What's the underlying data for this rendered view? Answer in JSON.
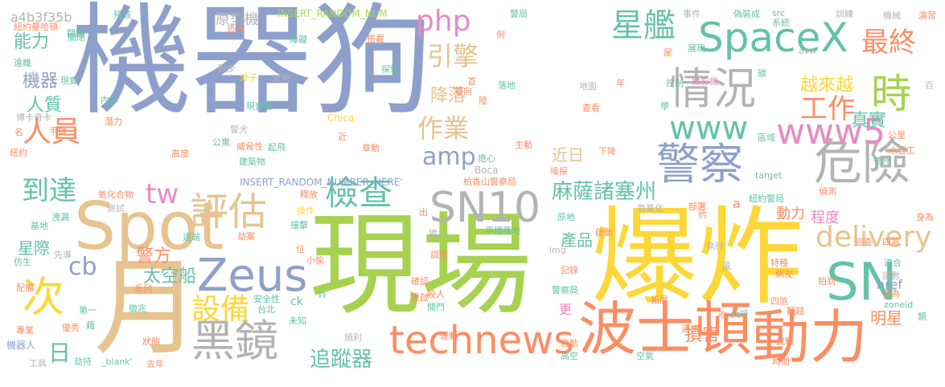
{
  "colors": {
    "blue": "#8d9fcb",
    "green": "#a5d24f",
    "yellow": "#fdd737",
    "orange": "#fc8d62",
    "teal": "#64c2a6",
    "tan": "#e6c38f",
    "gray": "#b3b3b3",
    "pink": "#e78ac3",
    "lime": "#a6d854"
  },
  "words": [
    {
      "text": "機器狗",
      "color": "blue"
    },
    {
      "text": "現場",
      "color": "green"
    },
    {
      "text": "爆炸",
      "color": "yellow"
    },
    {
      "text": "月",
      "color": "tan"
    },
    {
      "text": "Spot",
      "color": "tan"
    },
    {
      "text": "波士頓",
      "color": "orange"
    },
    {
      "text": "動力",
      "color": "orange"
    },
    {
      "text": "SN10",
      "color": "gray"
    },
    {
      "text": "SN",
      "color": "teal"
    },
    {
      "text": "黑鏡",
      "color": "gray"
    },
    {
      "text": "Zeus",
      "color": "blue"
    },
    {
      "text": "警察",
      "color": "blue"
    },
    {
      "text": "危險",
      "color": "gray"
    },
    {
      "text": "情況",
      "color": "gray"
    },
    {
      "text": "時",
      "color": "green"
    },
    {
      "text": "次",
      "color": "yellow"
    },
    {
      "text": "SpaceX",
      "color": "teal"
    },
    {
      "text": "technews",
      "color": "orange"
    },
    {
      "text": "評估",
      "color": "tan"
    },
    {
      "text": "檢查",
      "color": "teal"
    },
    {
      "text": "www5",
      "color": "pink"
    },
    {
      "text": "www",
      "color": "teal"
    },
    {
      "text": "星艦",
      "color": "teal"
    },
    {
      "text": "最終",
      "color": "orange"
    },
    {
      "text": "delivery",
      "color": "tan"
    },
    {
      "text": "設備",
      "color": "yellow"
    },
    {
      "text": "工作",
      "color": "orange"
    },
    {
      "text": "php",
      "color": "pink"
    },
    {
      "text": "amp",
      "color": "blue"
    },
    {
      "text": "人員",
      "color": "orange"
    },
    {
      "text": "到達",
      "color": "teal"
    },
    {
      "text": "作業",
      "color": "tan"
    },
    {
      "text": "引擎",
      "color": "tan"
    },
    {
      "text": "tw",
      "color": "pink"
    },
    {
      "text": "cb",
      "color": "blue"
    },
    {
      "text": "日",
      "color": "teal"
    },
    {
      "text": "麻薩諸塞州",
      "color": "teal"
    },
    {
      "text": "追蹤器",
      "color": "teal"
    },
    {
      "text": "越來越",
      "color": "yellow"
    },
    {
      "text": "真實",
      "color": "teal"
    },
    {
      "text": "能力",
      "color": "teal"
    },
    {
      "text": "人質",
      "color": "teal"
    },
    {
      "text": "警方",
      "color": "orange"
    },
    {
      "text": "太空船",
      "color": "teal"
    },
    {
      "text": "降落",
      "color": "tan"
    },
    {
      "text": "機器",
      "color": "blue"
    },
    {
      "text": "原型機",
      "color": "gray"
    },
    {
      "text": "損害",
      "color": "orange"
    },
    {
      "text": "明星",
      "color": "orange"
    },
    {
      "text": "產品",
      "color": "teal"
    },
    {
      "text": "動力",
      "color": "orange"
    },
    {
      "text": "程度",
      "color": "pink"
    },
    {
      "text": "星際",
      "color": "teal"
    },
    {
      "text": "近日",
      "color": "tan"
    },
    {
      "text": "a4b3f35b",
      "color": "gray"
    },
    {
      "text": "INSERT_RANDOM_NUM",
      "color": "lime"
    },
    {
      "text": "INSERT_RANDOM_NUMBER_HERE'",
      "color": "blue"
    },
    {
      "text": "href",
      "color": "blue"
    },
    {
      "text": "更",
      "color": "pink"
    },
    {
      "text": "四煞",
      "color": "orange"
    },
    {
      "text": "閉閉",
      "color": "teal"
    },
    {
      "text": "紐約警局",
      "color": "teal"
    },
    {
      "text": "柏香山警察局",
      "color": "orange"
    },
    {
      "text": "警察局",
      "color": "teal"
    },
    {
      "text": "機器人",
      "color": "blue"
    },
    {
      "text": "機械",
      "color": "gray"
    },
    {
      "text": "巡查",
      "color": "orange"
    },
    {
      "text": "獨立",
      "color": "gray"
    },
    {
      "text": "平穩落地",
      "color": "teal"
    },
    {
      "text": "確認",
      "color": "orange"
    },
    {
      "text": "重啟",
      "color": "orange"
    },
    {
      "text": "調整",
      "color": "orange"
    },
    {
      "text": "運動",
      "color": "orange"
    },
    {
      "text": "網友",
      "color": "orange"
    },
    {
      "text": "特種",
      "color": "orange"
    },
    {
      "text": "拍到",
      "color": "orange"
    },
    {
      "text": "適合",
      "color": "teal"
    },
    {
      "text": "讀數",
      "color": "gray"
    },
    {
      "text": "名為",
      "color": "orange"
    },
    {
      "text": "翻越",
      "color": "orange"
    },
    {
      "text": "四煞",
      "color": "orange"
    },
    {
      "text": "zoneid",
      "color": "teal"
    },
    {
      "text": "公里",
      "color": "orange"
    },
    {
      "text": "水管工",
      "color": "orange"
    },
    {
      "text": "德州",
      "color": "teal"
    },
    {
      "text": "部署",
      "color": "orange"
    },
    {
      "text": "商業化",
      "color": "gray"
    },
    {
      "text": "啟動",
      "color": "orange"
    },
    {
      "text": "執行",
      "color": "gray"
    },
    {
      "text": "target",
      "color": "teal"
    },
    {
      "text": "偵測",
      "color": "orange"
    },
    {
      "text": "區域",
      "color": "teal"
    },
    {
      "text": "查看",
      "color": "orange"
    },
    {
      "text": "控制",
      "color": "teal"
    },
    {
      "text": "攝影機",
      "color": "pink"
    },
    {
      "text": "地面",
      "color": "gray"
    },
    {
      "text": "avw",
      "color": "gray"
    },
    {
      "text": "碳",
      "color": "teal"
    },
    {
      "text": "展現",
      "color": "teal"
    },
    {
      "text": "系統",
      "color": "teal"
    },
    {
      "text": "事件",
      "color": "gray"
    },
    {
      "text": "偽裝成",
      "color": "teal"
    },
    {
      "text": "src",
      "color": "teal"
    },
    {
      "text": "訓練",
      "color": "gray"
    },
    {
      "text": "演習",
      "color": "orange"
    },
    {
      "text": "警局",
      "color": "teal"
    },
    {
      "text": "殘骸",
      "color": "teal"
    },
    {
      "text": "紐約曼哈頓",
      "color": "orange"
    },
    {
      "text": "關閉",
      "color": "teal"
    },
    {
      "text": "遠離",
      "color": "teal"
    },
    {
      "text": "現實",
      "color": "teal"
    },
    {
      "text": "內部",
      "color": "teal"
    },
    {
      "text": "博卡奇卡",
      "color": "gray"
    },
    {
      "text": "手臂",
      "color": "orange"
    },
    {
      "text": "潛力",
      "color": "orange"
    },
    {
      "text": "紐約",
      "color": "orange"
    },
    {
      "text": "高度",
      "color": "orange"
    },
    {
      "text": "氧化合物",
      "color": "orange"
    },
    {
      "text": "測試",
      "color": "gray"
    },
    {
      "text": "基地",
      "color": "teal"
    },
    {
      "text": "洩漏",
      "color": "teal"
    },
    {
      "text": "仿生",
      "color": "teal"
    },
    {
      "text": "先導",
      "color": "gray"
    },
    {
      "text": "配備",
      "color": "orange"
    },
    {
      "text": "第一",
      "color": "teal"
    },
    {
      "text": "徵兆",
      "color": "teal"
    },
    {
      "text": "專業",
      "color": "orange"
    },
    {
      "text": "藉",
      "color": "teal"
    },
    {
      "text": "優秀",
      "color": "orange"
    },
    {
      "text": "狀態",
      "color": "orange"
    },
    {
      "text": "工具",
      "color": "gray"
    },
    {
      "text": "劫持",
      "color": "teal"
    },
    {
      "text": "_blank'",
      "color": "teal"
    },
    {
      "text": "去年",
      "color": "orange"
    },
    {
      "text": "跑步",
      "color": "gray"
    },
    {
      "text": "分子",
      "color": "yellow"
    },
    {
      "text": "試飛",
      "color": "gray"
    },
    {
      "text": "障礙",
      "color": "teal"
    },
    {
      "text": "搭載",
      "color": "orange"
    },
    {
      "text": "探憶",
      "color": "teal"
    },
    {
      "text": "雙向",
      "color": "orange"
    },
    {
      "text": "起飛",
      "color": "teal"
    },
    {
      "text": "威脅性",
      "color": "orange"
    },
    {
      "text": "建築物",
      "color": "teal"
    },
    {
      "text": "章動",
      "color": "orange"
    },
    {
      "text": "擔心",
      "color": "teal"
    },
    {
      "text": "噪探",
      "color": "orange"
    },
    {
      "text": "下降",
      "color": "orange"
    },
    {
      "text": "主動",
      "color": "orange"
    },
    {
      "text": "落地",
      "color": "teal"
    },
    {
      "text": "撞擊",
      "color": "teal"
    },
    {
      "text": "操作",
      "color": "yellow"
    },
    {
      "text": "遠端",
      "color": "teal"
    },
    {
      "text": "劫案",
      "color": "orange"
    },
    {
      "text": "安全性",
      "color": "teal"
    },
    {
      "text": "台北",
      "color": "teal"
    },
    {
      "text": "小偷",
      "color": "orange"
    },
    {
      "text": "未知",
      "color": "teal"
    },
    {
      "text": "順利",
      "color": "gray"
    },
    {
      "text": "殺人",
      "color": "orange"
    },
    {
      "text": "開門",
      "color": "teal"
    },
    {
      "text": "恐怖",
      "color": "orange"
    },
    {
      "text": "高空",
      "color": "teal"
    },
    {
      "text": "空氣",
      "color": "teal"
    },
    {
      "text": "通訊",
      "color": "orange"
    },
    {
      "text": "拓展",
      "color": "orange"
    },
    {
      "text": "試驗",
      "color": "orange"
    },
    {
      "text": "時間",
      "color": "orange"
    },
    {
      "text": "大呼",
      "color": "teal"
    },
    {
      "text": "吹",
      "color": "orange"
    },
    {
      "text": "自動",
      "color": "orange"
    },
    {
      "text": "記錄",
      "color": "orange"
    },
    {
      "text": "img",
      "color": "gray"
    },
    {
      "text": "ck",
      "color": "teal"
    },
    {
      "text": "n",
      "color": "teal"
    },
    {
      "text": "a",
      "color": "orange"
    },
    {
      "text": "Chica",
      "color": "yellow"
    },
    {
      "text": "Boca",
      "color": "gray"
    },
    {
      "text": "系列",
      "color": "orange"
    },
    {
      "text": "原地",
      "color": "teal"
    },
    {
      "text": "出",
      "color": "orange"
    },
    {
      "text": "例",
      "color": "orange"
    },
    {
      "text": "首",
      "color": "orange"
    },
    {
      "text": "年",
      "color": "orange"
    },
    {
      "text": "位",
      "color": "orange"
    },
    {
      "text": "約",
      "color": "orange"
    },
    {
      "text": "風",
      "color": "gray"
    },
    {
      "text": "學",
      "color": "teal"
    },
    {
      "text": "屋",
      "color": "orange"
    },
    {
      "text": "身為",
      "color": "orange"
    },
    {
      "text": "類",
      "color": "teal"
    },
    {
      "text": "百",
      "color": "gray"
    },
    {
      "text": "名",
      "color": "orange"
    },
    {
      "text": "近",
      "color": "orange"
    },
    {
      "text": "釋放",
      "color": "orange"
    },
    {
      "text": "陸",
      "color": "orange"
    },
    {
      "text": "公寓",
      "color": "teal"
    },
    {
      "text": "警犬",
      "color": "gray"
    },
    {
      "text": "現實版",
      "color": "teal"
    }
  ]
}
